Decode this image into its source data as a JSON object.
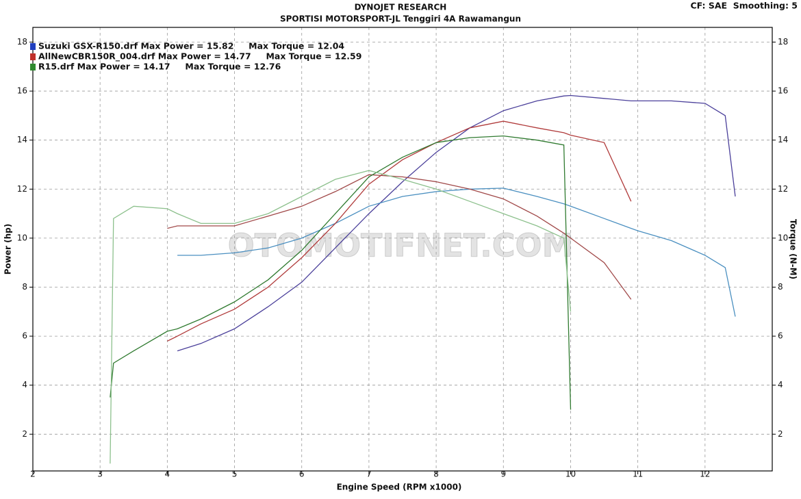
{
  "chart_data": {
    "type": "line",
    "title": "DYNOJET RESEARCH",
    "subtitle": "SPORTISI MOTORSPORT-JL Tenggiri 4A Rawamangun",
    "annotation": "CF: SAE  Smoothing: 5",
    "watermark": "OTOMOTIFNET.COM",
    "xlabel": "Engine Speed (RPM x1000)",
    "ylabel": "Power (hp)",
    "y2label": "Torque (N-M)",
    "legend": [
      {
        "label": "Suzuki GSX-R150.drf Max Power = 15.82     Max Torque = 12.04",
        "color": "#1f3fbf"
      },
      {
        "label": "AllNewCBR150R_004.drf Max Power = 14.77     Max Torque = 12.59",
        "color": "#c0302a"
      },
      {
        "label": "R15.drf Max Power = 14.17     Max Torque = 12.76",
        "color": "#2f8a2f"
      }
    ],
    "grid": true,
    "xlim": [
      2,
      13
    ],
    "xticks": [
      2,
      3,
      4,
      5,
      6,
      7,
      8,
      9,
      10,
      11,
      12
    ],
    "ylim": [
      0.5,
      18.6
    ],
    "yticks": [
      2,
      4,
      6,
      8,
      10,
      12,
      14,
      16,
      18
    ],
    "y2lim": [
      0.5,
      18.6
    ],
    "y2ticks": [
      2,
      4,
      6,
      8,
      10,
      12,
      14,
      16,
      18
    ],
    "x": [
      3.15,
      3.2,
      3.5,
      4,
      4.15,
      4.5,
      5,
      5.5,
      6,
      6.5,
      7,
      7.5,
      8,
      8.5,
      9,
      9.5,
      9.9,
      10,
      10.5,
      10.9,
      11,
      11.5,
      12,
      12.3,
      12.45
    ],
    "series": [
      {
        "color": "#4a3f9a",
        "axis": "y",
        "values": [
          null,
          null,
          null,
          null,
          5.4,
          5.7,
          6.3,
          7.2,
          8.2,
          9.6,
          11.0,
          12.3,
          13.5,
          14.5,
          15.2,
          15.6,
          15.8,
          15.82,
          15.7,
          15.6,
          15.6,
          15.6,
          15.5,
          15.0,
          11.7
        ]
      },
      {
        "color": "#4a8fc0",
        "axis": "y2",
        "values": [
          null,
          null,
          null,
          null,
          9.3,
          9.3,
          9.4,
          9.6,
          10.0,
          10.6,
          11.3,
          11.7,
          11.9,
          12.0,
          12.04,
          11.7,
          11.4,
          11.3,
          10.8,
          10.4,
          10.3,
          9.9,
          9.3,
          8.8,
          6.8
        ]
      },
      {
        "color": "#b03a3a",
        "axis": "y",
        "values": [
          null,
          null,
          null,
          5.8,
          6.0,
          6.5,
          7.1,
          8.0,
          9.2,
          10.6,
          12.2,
          13.2,
          13.9,
          14.5,
          14.77,
          14.5,
          14.3,
          14.2,
          13.9,
          11.5,
          null,
          null,
          null,
          null,
          null
        ]
      },
      {
        "color": "#a04848",
        "axis": "y2",
        "values": [
          null,
          null,
          null,
          10.4,
          10.5,
          10.5,
          10.5,
          10.9,
          11.3,
          11.9,
          12.59,
          12.5,
          12.3,
          12.0,
          11.6,
          10.9,
          10.2,
          10.0,
          9.0,
          7.5,
          null,
          null,
          null,
          null,
          null
        ]
      },
      {
        "color": "#2f7a2f",
        "axis": "y",
        "values": [
          3.5,
          4.9,
          5.4,
          6.2,
          6.3,
          6.7,
          7.4,
          8.3,
          9.5,
          11.0,
          12.5,
          13.3,
          13.9,
          14.1,
          14.17,
          14.0,
          13.8,
          3.0,
          null,
          null,
          null,
          null,
          null,
          null,
          null
        ]
      },
      {
        "color": "#8cc08c",
        "axis": "y2",
        "values": [
          0.8,
          10.8,
          11.3,
          11.2,
          11.0,
          10.6,
          10.6,
          11.0,
          11.7,
          12.4,
          12.76,
          12.4,
          12.0,
          11.5,
          11.0,
          10.5,
          10.0,
          7.0,
          null,
          null,
          null,
          null,
          null,
          null,
          null
        ]
      }
    ]
  }
}
